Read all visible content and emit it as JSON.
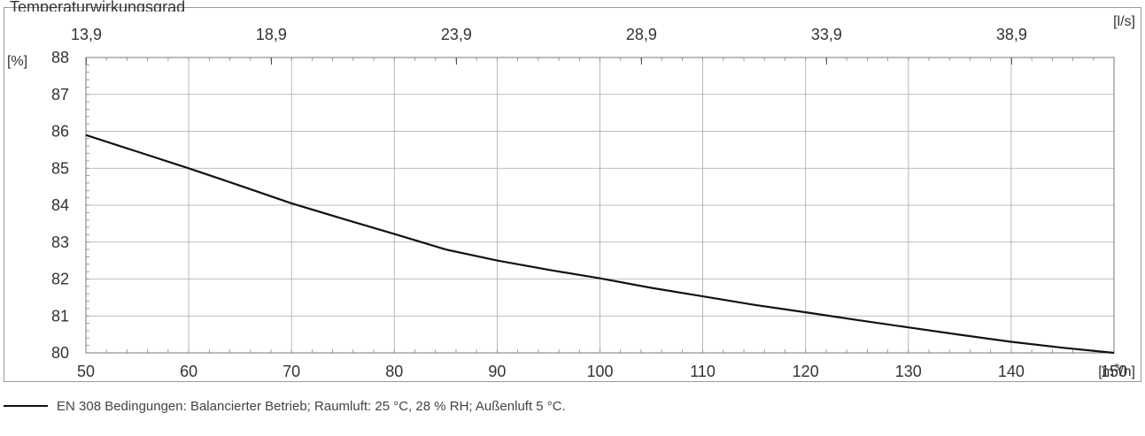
{
  "header": {
    "title_fragment": "Temperaturwirkungsgrad"
  },
  "chart_data": {
    "type": "line",
    "x_unit": "[m³/h]",
    "x_unit_base": "[m",
    "x_unit_sup": "3",
    "x_unit_tail": "/h]",
    "y_unit": "[%]",
    "x2_unit": "[l/s]",
    "xlim": [
      50,
      150
    ],
    "ylim": [
      80,
      88
    ],
    "x_ticks": [
      50,
      60,
      70,
      80,
      90,
      100,
      110,
      120,
      130,
      140,
      150
    ],
    "y_ticks": [
      80,
      81,
      82,
      83,
      84,
      85,
      86,
      87,
      88
    ],
    "x2_ticks": [
      {
        "value": 13.9,
        "label": "13,9"
      },
      {
        "value": 18.9,
        "label": "18,9"
      },
      {
        "value": 23.9,
        "label": "23,9"
      },
      {
        "value": 28.9,
        "label": "28,9"
      },
      {
        "value": 33.9,
        "label": "33,9"
      },
      {
        "value": 38.9,
        "label": "38,9"
      }
    ],
    "grid": true,
    "series": [
      {
        "name": "EN 308 Bedingungen: Balancierter Betrieb; Raumluft: 25 °C, 28 % RH; Außenluft 5 °C.",
        "color": "#111111",
        "x": [
          50,
          55,
          60,
          65,
          70,
          75,
          80,
          85,
          90,
          95,
          100,
          105,
          110,
          115,
          120,
          125,
          130,
          135,
          140,
          145,
          150
        ],
        "y": [
          85.9,
          85.45,
          85.0,
          84.53,
          84.05,
          83.63,
          83.22,
          82.8,
          82.5,
          82.25,
          82.02,
          81.76,
          81.53,
          81.3,
          81.1,
          80.89,
          80.69,
          80.49,
          80.3,
          80.14,
          80.0
        ]
      }
    ]
  }
}
